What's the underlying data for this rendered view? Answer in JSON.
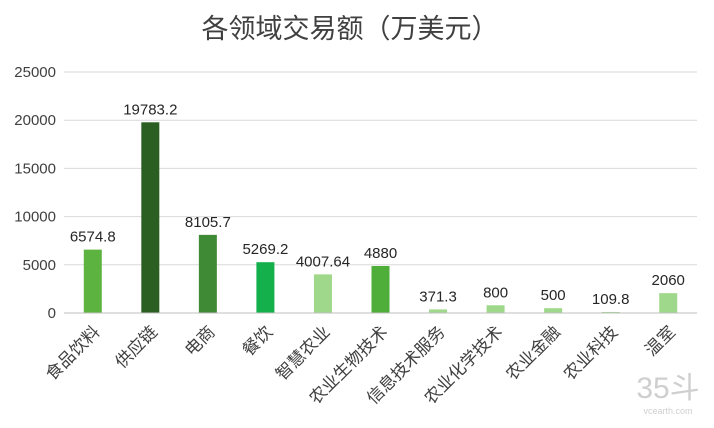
{
  "chart_data": {
    "type": "bar",
    "title": "各领域交易额（万美元）",
    "categories": [
      "食品饮料",
      "供应链",
      "电商",
      "餐饮",
      "智慧农业",
      "农业生物技术",
      "信息技术服务",
      "农业化学技术",
      "农业金融",
      "农业科技",
      "温室"
    ],
    "values": [
      6574.8,
      19783.2,
      8105.7,
      5269.2,
      4007.64,
      4880,
      371.3,
      800,
      500,
      109.8,
      2060
    ],
    "value_labels": [
      "6574.8",
      "19783.2",
      "8105.7",
      "5269.2",
      "4007.64",
      "4880",
      "371.3",
      "800",
      "500",
      "109.8",
      "2060"
    ],
    "colors": [
      "#5cb33f",
      "#2b5f22",
      "#3f8a34",
      "#13b04b",
      "#9fd88a",
      "#4fae3a",
      "#9fd88a",
      "#9fd88a",
      "#9fd88a",
      "#9fd88a",
      "#9fd88a"
    ],
    "ylim": [
      0,
      25000
    ],
    "yticks": [
      "0",
      "5000",
      "10000",
      "15000",
      "20000",
      "25000"
    ],
    "xlabel": "",
    "ylabel": "",
    "grid": true,
    "legend": "none"
  },
  "watermark": {
    "logo_text": "35斗",
    "site": "vcearth.com"
  }
}
